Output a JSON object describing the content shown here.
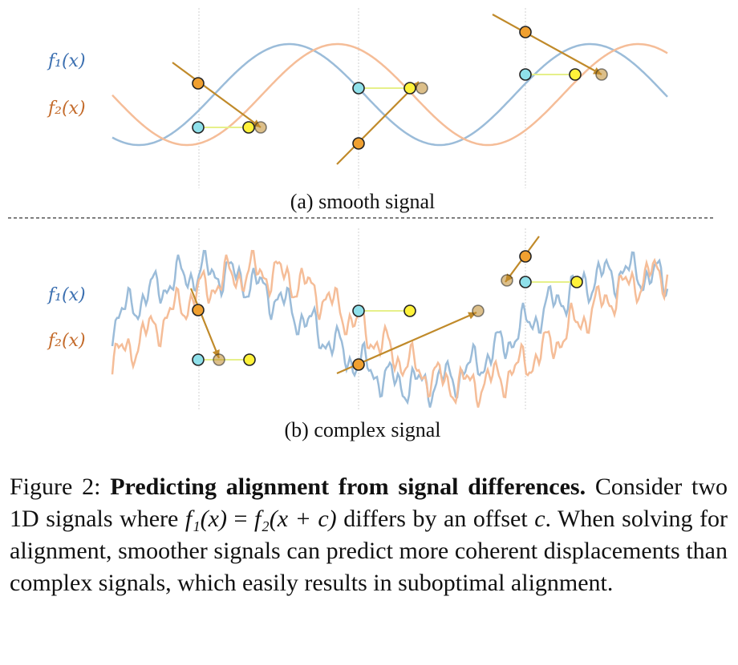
{
  "colors": {
    "f1": "#9bbcd9",
    "f2": "#f5bd98",
    "f1_label": "#3b6fb0",
    "f2_label": "#c36a2a",
    "arrow": "#c08a2a",
    "point_f1": "#8fe0ea",
    "point_f2": "#f0a030",
    "point_target": "#fff23a",
    "connector": "#e6f08a",
    "guide": "#cccccc"
  },
  "panels": [
    {
      "id": "smooth",
      "label_f1": "f₁(x)",
      "label_f2": "f₂(x)",
      "subcaption": "(a) smooth signal"
    },
    {
      "id": "complex",
      "label_f1": "f₁(x)",
      "label_f2": "f₂(x)",
      "subcaption": "(b) complex signal"
    }
  ],
  "caption": {
    "figure_label": "Figure 2:",
    "title": "Predicting alignment from signal differences.",
    "t1": "Consider two 1D signals where",
    "eq_lhs": "f₁(x)",
    "eq_op": "=",
    "eq_rhs": "f₂(x + c)",
    "t2": "differs by an offset",
    "c": "c",
    "t3": ". When solving for alignment, smoother signals can predict more coherent displacements than complex signals, which easily results in suboptimal alignment."
  }
}
